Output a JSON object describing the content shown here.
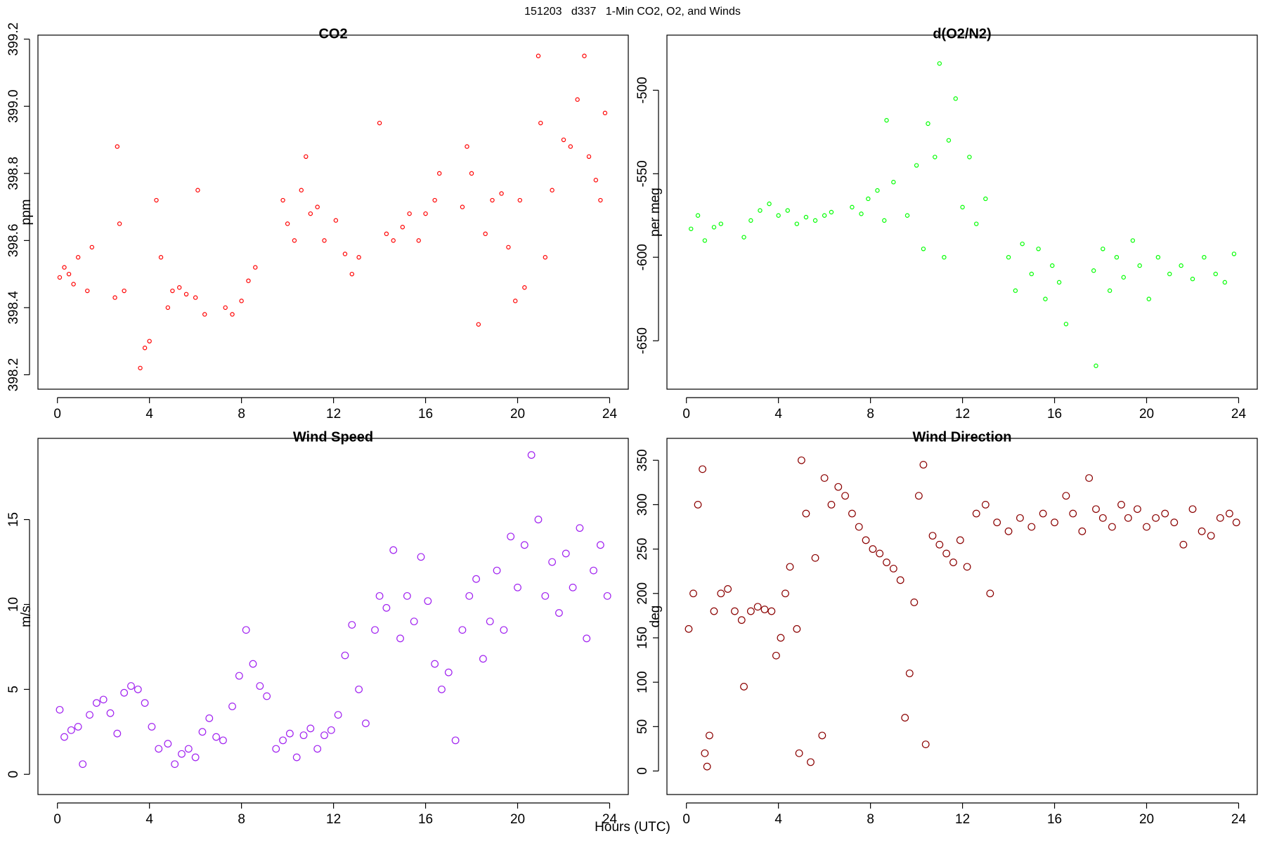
{
  "title": "151203   d337   1-Min CO2, O2, and Winds",
  "x_label": "Hours (UTC)",
  "chart_data": [
    {
      "type": "scatter",
      "title": "CO2",
      "y_label": "ppm",
      "color": "#ff0000",
      "xlim": [
        -0.846,
        24.81
      ],
      "xticks": [
        0,
        4,
        8,
        12,
        16,
        20,
        24
      ],
      "ylim": [
        398.157,
        399.212
      ],
      "yticks": [
        398.2,
        398.4,
        398.6,
        398.8,
        {
          "value": 399,
          "label": "399.0"
        },
        399.2
      ],
      "x": [
        0.1,
        0.3,
        0.5,
        0.7,
        0.9,
        1.3,
        1.5,
        2.5,
        2.6,
        2.7,
        2.9,
        3.6,
        3.8,
        4.0,
        4.3,
        4.5,
        4.8,
        5.0,
        5.3,
        5.6,
        6.0,
        6.1,
        6.4,
        7.3,
        7.6,
        8.0,
        8.3,
        8.6,
        9.8,
        10.0,
        10.3,
        10.6,
        10.8,
        11.0,
        11.3,
        11.6,
        12.1,
        12.5,
        12.8,
        13.1,
        14.0,
        14.3,
        14.6,
        15.0,
        15.3,
        15.7,
        16.0,
        16.4,
        16.6,
        17.6,
        17.8,
        18.0,
        18.3,
        18.6,
        18.9,
        19.3,
        19.6,
        19.9,
        20.1,
        20.3,
        20.9,
        21.0,
        21.2,
        21.5,
        22.0,
        22.3,
        22.6,
        22.9,
        23.1,
        23.4,
        23.6,
        23.8
      ],
      "values": [
        398.49,
        398.52,
        398.5,
        398.47,
        398.55,
        398.45,
        398.58,
        398.43,
        398.88,
        398.65,
        398.45,
        398.22,
        398.28,
        398.3,
        398.72,
        398.55,
        398.4,
        398.45,
        398.46,
        398.44,
        398.43,
        398.75,
        398.38,
        398.4,
        398.38,
        398.42,
        398.48,
        398.52,
        398.72,
        398.65,
        398.6,
        398.75,
        398.85,
        398.68,
        398.7,
        398.6,
        398.66,
        398.56,
        398.5,
        398.55,
        398.95,
        398.62,
        398.6,
        398.64,
        398.68,
        398.6,
        398.68,
        398.72,
        398.8,
        398.7,
        398.88,
        398.8,
        398.35,
        398.62,
        398.72,
        398.74,
        398.58,
        398.42,
        398.72,
        398.46,
        399.15,
        398.95,
        398.55,
        398.75,
        398.9,
        398.88,
        399.02,
        399.15,
        398.85,
        398.78,
        398.72,
        398.98
      ]
    },
    {
      "type": "scatter",
      "title": "d(O2/N2)",
      "y_label": "per meg",
      "color": "#00ff00",
      "xlim": [
        -0.846,
        24.81
      ],
      "xticks": [
        0,
        4,
        8,
        12,
        16,
        20,
        24
      ],
      "ylim": [
        -679,
        -467
      ],
      "yticks": [
        -650,
        -600,
        -550,
        -500
      ],
      "x": [
        0.2,
        0.5,
        0.8,
        1.2,
        1.5,
        2.5,
        2.8,
        3.2,
        3.6,
        4.0,
        4.4,
        4.8,
        5.2,
        5.6,
        6.0,
        6.3,
        7.2,
        7.6,
        7.9,
        8.3,
        8.6,
        8.7,
        9.0,
        9.6,
        10.0,
        10.3,
        10.5,
        10.8,
        11.0,
        11.2,
        11.4,
        11.7,
        12.0,
        12.3,
        12.6,
        13.0,
        14.0,
        14.3,
        14.6,
        15.0,
        15.3,
        15.6,
        15.9,
        16.2,
        16.5,
        17.7,
        17.8,
        18.1,
        18.4,
        18.7,
        19.0,
        19.4,
        19.7,
        20.1,
        20.5,
        21.0,
        21.5,
        22.0,
        22.5,
        23.0,
        23.4,
        23.8
      ],
      "values": [
        -583,
        -575,
        -590,
        -582,
        -580,
        -588,
        -578,
        -572,
        -568,
        -575,
        -572,
        -580,
        -576,
        -578,
        -575,
        -573,
        -570,
        -574,
        -565,
        -560,
        -578,
        -518,
        -555,
        -575,
        -545,
        -595,
        -520,
        -540,
        -484,
        -600,
        -530,
        -505,
        -570,
        -540,
        -580,
        -565,
        -600,
        -620,
        -592,
        -610,
        -595,
        -625,
        -605,
        -615,
        -640,
        -608,
        -665,
        -595,
        -620,
        -600,
        -612,
        -590,
        -605,
        -625,
        -600,
        -610,
        -605,
        -613,
        -600,
        -610,
        -615,
        -598
      ]
    },
    {
      "type": "scatter",
      "title": "Wind Speed",
      "y_label": "m/s",
      "color": "#a020f0",
      "xlim": [
        -0.846,
        24.81
      ],
      "xticks": [
        0,
        4,
        8,
        12,
        16,
        20,
        24
      ],
      "ylim": [
        -1.19,
        19.78
      ],
      "yticks": [
        0,
        5,
        10,
        15
      ],
      "x": [
        0.1,
        0.3,
        0.6,
        0.9,
        1.1,
        1.4,
        1.7,
        2.0,
        2.3,
        2.6,
        2.9,
        3.2,
        3.5,
        3.8,
        4.1,
        4.4,
        4.8,
        5.1,
        5.4,
        5.7,
        6.0,
        6.3,
        6.6,
        6.9,
        7.2,
        7.6,
        7.9,
        8.2,
        8.5,
        8.8,
        9.1,
        9.5,
        9.8,
        10.1,
        10.4,
        10.7,
        11.0,
        11.3,
        11.6,
        11.9,
        12.2,
        12.5,
        12.8,
        13.1,
        13.4,
        13.8,
        14.0,
        14.3,
        14.6,
        14.9,
        15.2,
        15.5,
        15.8,
        16.1,
        16.4,
        16.7,
        17.0,
        17.3,
        17.6,
        17.9,
        18.2,
        18.5,
        18.8,
        19.1,
        19.4,
        19.7,
        20.0,
        20.3,
        20.6,
        20.9,
        21.2,
        21.5,
        21.8,
        22.1,
        22.4,
        22.7,
        23.0,
        23.3,
        23.6,
        23.9
      ],
      "values": [
        3.8,
        2.2,
        2.6,
        2.8,
        0.6,
        3.5,
        4.2,
        4.4,
        3.6,
        2.4,
        4.8,
        5.2,
        5.0,
        4.2,
        2.8,
        1.5,
        1.8,
        0.6,
        1.2,
        1.5,
        1.0,
        2.5,
        3.3,
        2.2,
        2.0,
        4.0,
        5.8,
        8.5,
        6.5,
        5.2,
        4.6,
        1.5,
        2.0,
        2.4,
        1.0,
        2.3,
        2.7,
        1.5,
        2.3,
        2.6,
        3.5,
        7.0,
        8.8,
        5.0,
        3.0,
        8.5,
        10.5,
        9.8,
        13.2,
        8.0,
        10.5,
        9.0,
        12.8,
        10.2,
        6.5,
        5.0,
        6.0,
        2.0,
        8.5,
        10.5,
        11.5,
        6.8,
        9.0,
        12.0,
        8.5,
        14.0,
        11.0,
        13.5,
        18.8,
        15.0,
        10.5,
        12.5,
        9.5,
        13.0,
        11.0,
        14.5,
        8.0,
        12.0,
        13.5,
        10.5
      ]
    },
    {
      "type": "scatter",
      "title": "Wind Direction",
      "y_label": "deg",
      "color": "#8b0000",
      "xlim": [
        -0.846,
        24.81
      ],
      "xticks": [
        0,
        4,
        8,
        12,
        16,
        20,
        24
      ],
      "ylim": [
        -26.5,
        374.7
      ],
      "yticks": [
        0,
        50,
        100,
        150,
        200,
        250,
        300,
        350
      ],
      "x": [
        0.1,
        0.3,
        0.5,
        0.7,
        0.8,
        0.9,
        1.0,
        1.2,
        1.5,
        1.8,
        2.1,
        2.4,
        2.5,
        2.8,
        3.1,
        3.4,
        3.7,
        3.9,
        4.1,
        4.3,
        4.5,
        4.8,
        4.9,
        5.0,
        5.2,
        5.4,
        5.6,
        5.9,
        6.0,
        6.3,
        6.6,
        6.9,
        7.2,
        7.5,
        7.8,
        8.1,
        8.4,
        8.7,
        9.0,
        9.3,
        9.5,
        9.7,
        9.9,
        10.1,
        10.3,
        10.4,
        10.7,
        11.0,
        11.3,
        11.6,
        11.9,
        12.2,
        12.6,
        13.0,
        13.2,
        13.5,
        14.0,
        14.5,
        15.0,
        15.5,
        16.0,
        16.5,
        16.8,
        17.2,
        17.5,
        17.8,
        18.1,
        18.5,
        18.9,
        19.2,
        19.6,
        20.0,
        20.4,
        20.8,
        21.2,
        21.6,
        22.0,
        22.4,
        22.8,
        23.2,
        23.6,
        23.9
      ],
      "values": [
        160,
        200,
        300,
        340,
        20,
        5,
        40,
        180,
        200,
        205,
        180,
        170,
        95,
        180,
        185,
        182,
        180,
        130,
        150,
        200,
        230,
        160,
        20,
        350,
        290,
        10,
        240,
        40,
        330,
        300,
        320,
        310,
        290,
        275,
        260,
        250,
        245,
        235,
        228,
        215,
        60,
        110,
        190,
        310,
        345,
        30,
        265,
        255,
        245,
        235,
        260,
        230,
        290,
        300,
        200,
        280,
        270,
        285,
        275,
        290,
        280,
        310,
        290,
        270,
        330,
        295,
        285,
        275,
        300,
        285,
        295,
        275,
        285,
        290,
        280,
        255,
        295,
        270,
        265,
        285,
        290,
        280
      ]
    }
  ]
}
